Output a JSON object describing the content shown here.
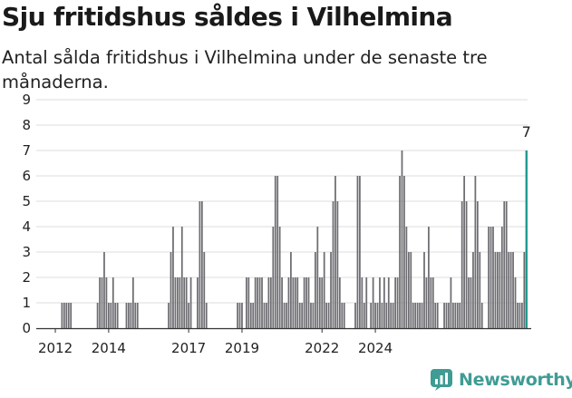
{
  "title": "Sju fritidshus såldes i Vilhelmina",
  "subtitle": "Antal sålda fritidshus i Vilhelmina under de senaste tre månaderna.",
  "brand": {
    "name": "Newsworthy",
    "color": "#3f9c94"
  },
  "colors": {
    "bar": "#6d6d72",
    "highlight": "#1f9a8f",
    "grid": "#dedede",
    "axis": "#333333"
  },
  "chart_data": {
    "type": "bar",
    "x_start": "2011-09",
    "x_interval": "month",
    "ylim": [
      0,
      9
    ],
    "y_ticks": [
      0,
      1,
      2,
      3,
      4,
      5,
      6,
      7,
      8,
      9
    ],
    "x_tick_labels": [
      "2012",
      "2014",
      "2017",
      "2019",
      "2022",
      "2024"
    ],
    "x_tick_positions": [
      "2012-01",
      "2014-01",
      "2017-01",
      "2019-01",
      "2022-01",
      "2024-01"
    ],
    "grid": true,
    "highlight_last": true,
    "annotation": "7",
    "values": [
      0,
      0,
      0,
      0,
      0,
      0,
      0,
      1,
      1,
      1,
      1,
      1,
      0,
      0,
      0,
      0,
      0,
      0,
      0,
      0,
      0,
      0,
      0,
      1,
      2,
      2,
      3,
      2,
      1,
      1,
      2,
      1,
      1,
      0,
      0,
      0,
      1,
      1,
      1,
      2,
      1,
      1,
      0,
      0,
      0,
      0,
      0,
      0,
      0,
      0,
      0,
      0,
      0,
      0,
      0,
      1,
      3,
      4,
      2,
      2,
      2,
      4,
      2,
      2,
      1,
      2,
      0,
      0,
      2,
      5,
      5,
      3,
      1,
      0,
      0,
      0,
      0,
      0,
      0,
      0,
      0,
      0,
      0,
      0,
      0,
      0,
      1,
      1,
      1,
      0,
      2,
      2,
      1,
      1,
      2,
      2,
      2,
      2,
      1,
      1,
      2,
      2,
      4,
      6,
      6,
      4,
      2,
      1,
      1,
      2,
      3,
      2,
      2,
      2,
      1,
      1,
      2,
      2,
      2,
      1,
      1,
      3,
      4,
      2,
      2,
      3,
      1,
      1,
      3,
      5,
      6,
      5,
      2,
      1,
      1,
      0,
      0,
      0,
      0,
      1,
      6,
      6,
      2,
      1,
      2,
      0,
      1,
      2,
      1,
      1,
      2,
      1,
      2,
      1,
      2,
      1,
      1,
      2,
      2,
      6,
      7,
      6,
      4,
      3,
      3,
      1,
      1,
      1,
      1,
      1,
      3,
      2,
      4,
      2,
      2,
      1,
      1,
      0,
      0,
      1,
      1,
      1,
      2,
      1,
      1,
      1,
      1,
      5,
      6,
      5,
      2,
      2,
      3,
      6,
      5,
      3,
      1,
      0,
      0,
      4,
      4,
      4,
      3,
      3,
      3,
      4,
      5,
      5,
      3,
      3,
      3,
      2,
      1,
      1,
      1,
      3,
      7
    ]
  }
}
